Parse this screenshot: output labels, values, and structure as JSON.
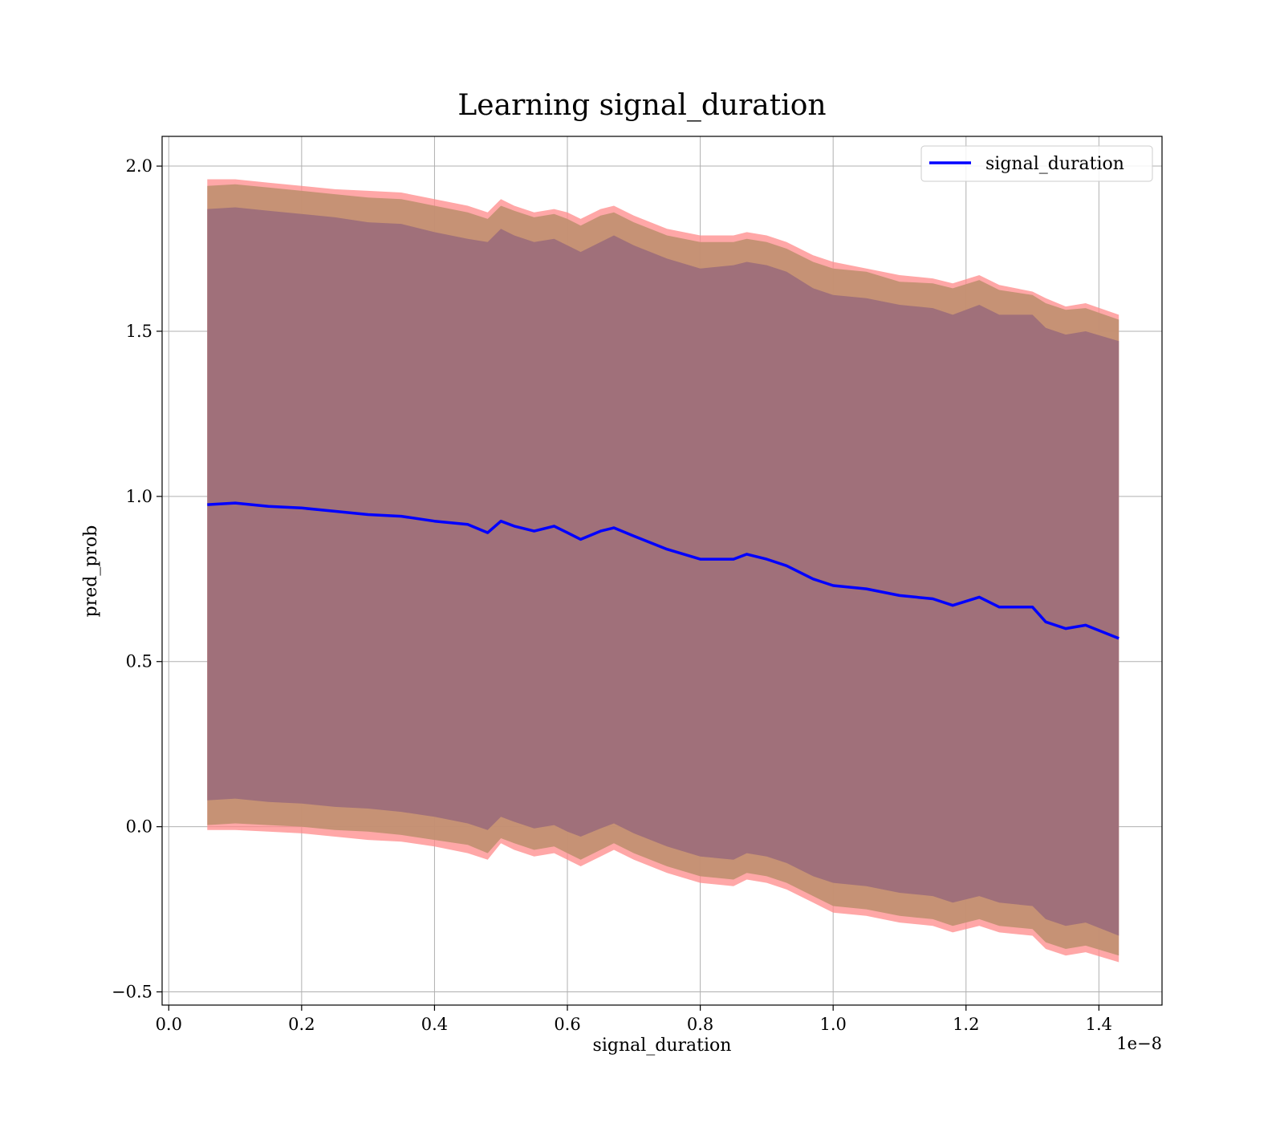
{
  "chart_data": {
    "type": "line",
    "title": "Learning signal_duration",
    "xlabel": "signal_duration",
    "ylabel": "pred_prob",
    "x_offset_label": "1e−8",
    "xlim": [
      -0.01,
      1.495
    ],
    "ylim": [
      -0.54,
      2.09
    ],
    "x_ticks": [
      0.0,
      0.2,
      0.4,
      0.6,
      0.8,
      1.0,
      1.2,
      1.4
    ],
    "x_tick_labels": [
      "0.0",
      "0.2",
      "0.4",
      "0.6",
      "0.8",
      "1.0",
      "1.2",
      "1.4"
    ],
    "y_ticks": [
      -0.5,
      0.0,
      0.5,
      1.0,
      1.5,
      2.0
    ],
    "y_tick_labels": [
      "−0.5",
      "0.0",
      "0.5",
      "1.0",
      "1.5",
      "2.0"
    ],
    "grid": true,
    "legend": {
      "position": "top-right",
      "entries": [
        "signal_duration"
      ]
    },
    "colors": {
      "line": "#0000ff",
      "band_outer": "#ff8a8a",
      "band_inner_fill": "#c09070",
      "band_core": "#a0707a"
    },
    "x": [
      0.058,
      0.1,
      0.15,
      0.2,
      0.25,
      0.3,
      0.35,
      0.4,
      0.45,
      0.48,
      0.5,
      0.52,
      0.55,
      0.58,
      0.6,
      0.62,
      0.65,
      0.67,
      0.7,
      0.75,
      0.8,
      0.85,
      0.87,
      0.9,
      0.93,
      0.97,
      1.0,
      1.05,
      1.1,
      1.15,
      1.18,
      1.22,
      1.25,
      1.3,
      1.32,
      1.35,
      1.38,
      1.43
    ],
    "series": [
      {
        "name": "signal_duration",
        "values": [
          0.975,
          0.98,
          0.97,
          0.965,
          0.955,
          0.945,
          0.94,
          0.925,
          0.915,
          0.89,
          0.925,
          0.91,
          0.895,
          0.91,
          0.89,
          0.87,
          0.895,
          0.905,
          0.88,
          0.84,
          0.81,
          0.81,
          0.825,
          0.81,
          0.79,
          0.75,
          0.73,
          0.72,
          0.7,
          0.69,
          0.67,
          0.695,
          0.665,
          0.665,
          0.62,
          0.6,
          0.61,
          0.57
        ]
      }
    ],
    "bands": [
      {
        "level": "outer",
        "upper": [
          1.96,
          1.96,
          1.95,
          1.94,
          1.93,
          1.925,
          1.92,
          1.9,
          1.88,
          1.86,
          1.9,
          1.88,
          1.86,
          1.87,
          1.86,
          1.84,
          1.87,
          1.88,
          1.85,
          1.81,
          1.79,
          1.79,
          1.8,
          1.79,
          1.77,
          1.73,
          1.71,
          1.69,
          1.67,
          1.66,
          1.645,
          1.67,
          1.64,
          1.62,
          1.6,
          1.575,
          1.585,
          1.55
        ],
        "lower": [
          -0.01,
          -0.01,
          -0.015,
          -0.02,
          -0.03,
          -0.04,
          -0.045,
          -0.06,
          -0.08,
          -0.1,
          -0.05,
          -0.07,
          -0.09,
          -0.08,
          -0.1,
          -0.12,
          -0.09,
          -0.07,
          -0.1,
          -0.14,
          -0.17,
          -0.18,
          -0.16,
          -0.17,
          -0.19,
          -0.23,
          -0.26,
          -0.27,
          -0.29,
          -0.3,
          -0.32,
          -0.3,
          -0.32,
          -0.33,
          -0.37,
          -0.39,
          -0.38,
          -0.41
        ]
      },
      {
        "level": "middle",
        "upper": [
          1.94,
          1.945,
          1.935,
          1.925,
          1.915,
          1.905,
          1.9,
          1.88,
          1.86,
          1.84,
          1.88,
          1.865,
          1.845,
          1.855,
          1.84,
          1.82,
          1.85,
          1.86,
          1.83,
          1.79,
          1.77,
          1.77,
          1.78,
          1.77,
          1.75,
          1.71,
          1.69,
          1.68,
          1.65,
          1.645,
          1.63,
          1.655,
          1.625,
          1.61,
          1.585,
          1.565,
          1.57,
          1.535
        ],
        "lower": [
          0.005,
          0.01,
          0.005,
          0.0,
          -0.01,
          -0.015,
          -0.025,
          -0.04,
          -0.055,
          -0.08,
          -0.035,
          -0.05,
          -0.07,
          -0.06,
          -0.08,
          -0.1,
          -0.07,
          -0.05,
          -0.08,
          -0.12,
          -0.15,
          -0.16,
          -0.14,
          -0.15,
          -0.17,
          -0.21,
          -0.24,
          -0.25,
          -0.27,
          -0.28,
          -0.3,
          -0.28,
          -0.3,
          -0.31,
          -0.35,
          -0.37,
          -0.36,
          -0.39
        ]
      },
      {
        "level": "inner",
        "upper": [
          1.87,
          1.875,
          1.865,
          1.855,
          1.845,
          1.83,
          1.825,
          1.8,
          1.78,
          1.77,
          1.81,
          1.79,
          1.77,
          1.78,
          1.76,
          1.74,
          1.77,
          1.79,
          1.76,
          1.72,
          1.69,
          1.7,
          1.71,
          1.7,
          1.68,
          1.63,
          1.61,
          1.6,
          1.58,
          1.57,
          1.55,
          1.58,
          1.55,
          1.55,
          1.51,
          1.49,
          1.5,
          1.47
        ],
        "lower": [
          0.08,
          0.085,
          0.075,
          0.07,
          0.06,
          0.055,
          0.045,
          0.03,
          0.01,
          -0.01,
          0.03,
          0.015,
          -0.005,
          0.005,
          -0.015,
          -0.03,
          -0.005,
          0.01,
          -0.02,
          -0.06,
          -0.09,
          -0.1,
          -0.08,
          -0.09,
          -0.11,
          -0.15,
          -0.17,
          -0.18,
          -0.2,
          -0.21,
          -0.23,
          -0.21,
          -0.23,
          -0.24,
          -0.28,
          -0.3,
          -0.29,
          -0.33
        ]
      }
    ]
  }
}
